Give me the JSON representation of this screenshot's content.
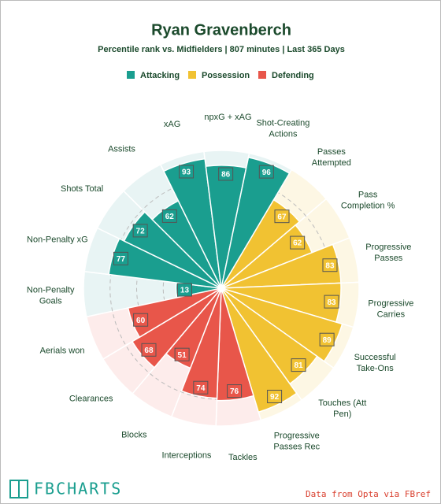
{
  "chart_data": {
    "type": "pizza",
    "title": "Ryan Gravenberch",
    "subtitle": "Percentile rank vs. Midfielders | 807 minutes | Last 365 Days",
    "categories": [
      "Non-Penalty\nGoals",
      "Non-Penalty xG",
      "Shots Total",
      "Assists",
      "xAG",
      "npxG + xAG",
      "Shot-Creating\nActions",
      "Passes\nAttempted",
      "Pass\nCompletion %",
      "Progressive\nPasses",
      "Progressive\nCarries",
      "Successful\nTake-Ons",
      "Touches (Att\nPen)",
      "Progressive\nPasses Rec",
      "Tackles",
      "Interceptions",
      "Blocks",
      "Clearances",
      "Aerials won"
    ],
    "series": [
      {
        "name": "Attacking",
        "color": "#1a9e8f",
        "background": "#e8f4f4",
        "values": [
          13,
          77,
          72,
          62,
          93,
          86,
          96,
          null,
          null,
          null,
          null,
          null,
          null,
          null,
          null,
          null,
          null,
          null,
          null
        ]
      },
      {
        "name": "Possession",
        "color": "#f1c232",
        "background": "#fdf7e4",
        "values": [
          null,
          null,
          null,
          null,
          null,
          null,
          null,
          67,
          62,
          83,
          83,
          89,
          81,
          92,
          null,
          null,
          null,
          null,
          null
        ]
      },
      {
        "name": "Defending",
        "color": "#e8564a",
        "background": "#fdeceb",
        "values": [
          null,
          null,
          null,
          null,
          null,
          null,
          null,
          null,
          null,
          null,
          null,
          null,
          null,
          null,
          76,
          74,
          51,
          68,
          60
        ]
      }
    ],
    "ylim": [
      0,
      100
    ],
    "yticks": [
      25,
      50,
      75
    ],
    "grid": true,
    "logo": "FBCHARTS",
    "source": "Data from Opta via FBref"
  }
}
